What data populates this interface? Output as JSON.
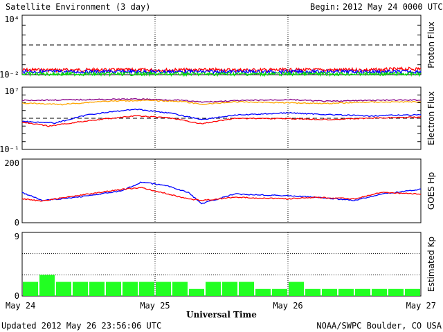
{
  "header": {
    "title": "Satellite Environment (3 day)",
    "begin_label": "Begin:",
    "begin_value": "2012 May 24 0000 UTC"
  },
  "footer": {
    "updated": "Updated 2012 May 26 23:56:06 UTC",
    "credit": "NOAA/SWPC Boulder, CO USA"
  },
  "chart_data": [
    {
      "type": "line",
      "ylabel": "Proton Flux",
      "yscale": "log",
      "ylim": [
        0.01,
        10000
      ],
      "ytick_labels": [
        "10⁴",
        "10⁻²"
      ],
      "threshold": 10,
      "x_range": [
        0,
        3
      ],
      "series": [
        {
          "color": "#ff0000",
          "y": [
            0.03,
            0.03,
            0.03,
            0.03,
            0.03,
            0.03,
            0.03,
            0.03,
            0.04
          ]
        },
        {
          "color": "#0000ff",
          "y": [
            0.02,
            0.02,
            0.02,
            0.02,
            0.02,
            0.02,
            0.02,
            0.02,
            0.02
          ]
        },
        {
          "color": "#00dd00",
          "y": [
            0.012,
            0.012,
            0.012,
            0.012,
            0.012,
            0.012,
            0.012,
            0.012,
            0.012
          ]
        }
      ]
    },
    {
      "type": "line",
      "ylabel": "Electron Flux",
      "yscale": "log",
      "ylim": [
        0.1,
        10000000
      ],
      "ytick_labels": [
        "10⁷",
        "10⁻¹"
      ],
      "threshold": 1000,
      "x_range": [
        0,
        3
      ],
      "series": [
        {
          "color": "#880088",
          "points": [
            [
              0,
              200000
            ],
            [
              0.5,
              250000
            ],
            [
              0.9,
              300000
            ],
            [
              1.2,
              200000
            ],
            [
              1.35,
              120000
            ],
            [
              1.6,
              180000
            ],
            [
              2.0,
              250000
            ],
            [
              2.3,
              150000
            ],
            [
              2.6,
              200000
            ],
            [
              3.0,
              220000
            ]
          ]
        },
        {
          "color": "#ffa500",
          "points": [
            [
              0,
              90000
            ],
            [
              0.3,
              60000
            ],
            [
              0.6,
              150000
            ],
            [
              0.9,
              200000
            ],
            [
              1.2,
              150000
            ],
            [
              1.35,
              60000
            ],
            [
              1.6,
              130000
            ],
            [
              2.0,
              100000
            ],
            [
              2.3,
              80000
            ],
            [
              2.6,
              120000
            ],
            [
              3.0,
              130000
            ]
          ]
        },
        {
          "color": "#0000ff",
          "points": [
            [
              0,
              400
            ],
            [
              0.25,
              250
            ],
            [
              0.5,
              3000
            ],
            [
              0.85,
              15000
            ],
            [
              1.1,
              5000
            ],
            [
              1.35,
              700
            ],
            [
              1.6,
              2500
            ],
            [
              2.0,
              5000
            ],
            [
              2.3,
              3000
            ],
            [
              2.6,
              2000
            ],
            [
              3.0,
              3000
            ]
          ]
        },
        {
          "color": "#ff0000",
          "points": [
            [
              0,
              300
            ],
            [
              0.2,
              100
            ],
            [
              0.5,
              500
            ],
            [
              0.85,
              2000
            ],
            [
              1.1,
              1200
            ],
            [
              1.35,
              200
            ],
            [
              1.6,
              1000
            ],
            [
              2.0,
              900
            ],
            [
              2.3,
              700
            ],
            [
              2.6,
              1000
            ],
            [
              3.0,
              1500
            ]
          ]
        }
      ]
    },
    {
      "type": "line",
      "ylabel": "GOES Hp",
      "ylim": [
        0,
        200
      ],
      "ytick_labels": [
        "200",
        "0"
      ],
      "x_range": [
        0,
        3
      ],
      "series": [
        {
          "color": "#0000ff",
          "points": [
            [
              0,
              95
            ],
            [
              0.15,
              70
            ],
            [
              0.3,
              75
            ],
            [
              0.5,
              85
            ],
            [
              0.75,
              100
            ],
            [
              0.9,
              128
            ],
            [
              1.1,
              115
            ],
            [
              1.25,
              95
            ],
            [
              1.35,
              60
            ],
            [
              1.6,
              90
            ],
            [
              2.0,
              85
            ],
            [
              2.2,
              80
            ],
            [
              2.5,
              70
            ],
            [
              2.7,
              90
            ],
            [
              3.0,
              105
            ]
          ]
        },
        {
          "color": "#ff0000",
          "points": [
            [
              0,
              75
            ],
            [
              0.15,
              68
            ],
            [
              0.3,
              78
            ],
            [
              0.5,
              90
            ],
            [
              0.75,
              105
            ],
            [
              0.9,
              110
            ],
            [
              1.1,
              90
            ],
            [
              1.25,
              75
            ],
            [
              1.35,
              70
            ],
            [
              1.6,
              80
            ],
            [
              2.0,
              75
            ],
            [
              2.2,
              80
            ],
            [
              2.5,
              75
            ],
            [
              2.7,
              95
            ],
            [
              3.0,
              90
            ]
          ]
        }
      ]
    },
    {
      "type": "bar",
      "ylabel": "Estimated Kp",
      "ylim": [
        0,
        9
      ],
      "ytick_labels": [
        "9",
        "0"
      ],
      "color": "#22ff22",
      "values": [
        2,
        3,
        2,
        2,
        2,
        2,
        2,
        2,
        2,
        2,
        1,
        2,
        2,
        2,
        1,
        1,
        2,
        1,
        1,
        1,
        1,
        1,
        1,
        1
      ]
    }
  ],
  "x_axis": {
    "labels": [
      "May 24",
      "May 25",
      "May 26",
      "May 27"
    ],
    "title": "Universal Time"
  }
}
